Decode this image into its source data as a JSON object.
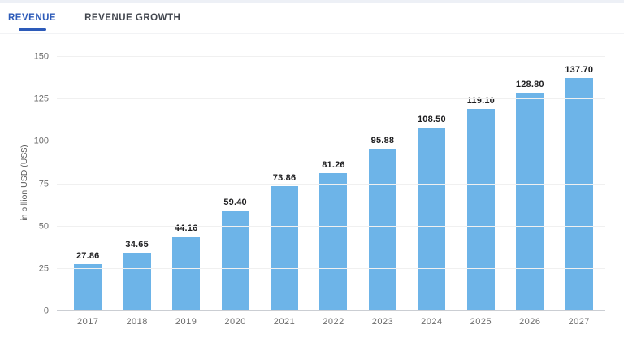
{
  "tabs": [
    {
      "label": "REVENUE",
      "active": true
    },
    {
      "label": "REVENUE GROWTH",
      "active": false
    }
  ],
  "colors": {
    "bar": "#6db4e8",
    "active_tab": "#2d5bb9",
    "inactive_tab": "#42464e",
    "gridline": "#f0f0f0",
    "axis_line": "#cbced3",
    "tick_label": "#6b6b6b",
    "value_label": "#1d1d1f"
  },
  "chart_data": {
    "type": "bar",
    "title": "",
    "xlabel": "",
    "ylabel": "in billion USD (US$)",
    "categories": [
      "2017",
      "2018",
      "2019",
      "2020",
      "2021",
      "2022",
      "2023",
      "2024",
      "2025",
      "2026",
      "2027"
    ],
    "values": [
      27.86,
      34.65,
      44.16,
      59.4,
      73.86,
      81.26,
      95.88,
      108.5,
      119.1,
      128.8,
      137.7
    ],
    "value_labels": [
      "27.86",
      "34.65",
      "44.16",
      "59.40",
      "73.86",
      "81.26",
      "95.88",
      "108.50",
      "119.10",
      "128.80",
      "137.70"
    ],
    "ylim": [
      0,
      150
    ],
    "yticks": [
      0,
      25,
      50,
      75,
      100,
      125,
      150
    ],
    "grid": true,
    "legend_position": "none"
  }
}
